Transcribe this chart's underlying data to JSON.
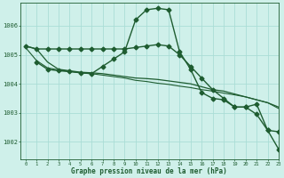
{
  "title": "Graphe pression niveau de la mer (hPa)",
  "background_color": "#cff0ea",
  "grid_color": "#aaddd6",
  "line_color": "#1e5c30",
  "xlim": [
    -0.5,
    23
  ],
  "ylim": [
    1001.4,
    1006.8
  ],
  "yticks": [
    1002,
    1003,
    1004,
    1005,
    1006
  ],
  "xticks": [
    0,
    1,
    2,
    3,
    4,
    5,
    6,
    7,
    8,
    9,
    10,
    11,
    12,
    13,
    14,
    15,
    16,
    17,
    18,
    19,
    20,
    21,
    22,
    23
  ],
  "series": [
    {
      "x": [
        0,
        1,
        2,
        3,
        4,
        5,
        6,
        7,
        8,
        9,
        10,
        11,
        12,
        13,
        14,
        15,
        16,
        17,
        18,
        19,
        20,
        21,
        22,
        23
      ],
      "y": [
        1005.3,
        1005.2,
        1004.75,
        1004.5,
        1004.45,
        1004.4,
        1004.38,
        1004.35,
        1004.3,
        1004.25,
        1004.2,
        1004.18,
        1004.15,
        1004.1,
        1004.05,
        1004.0,
        1003.9,
        1003.8,
        1003.75,
        1003.65,
        1003.55,
        1003.45,
        1003.35,
        1003.2
      ],
      "marker": null,
      "markersize": 0,
      "linewidth": 0.9
    },
    {
      "x": [
        0,
        1,
        2,
        3,
        4,
        5,
        6,
        7,
        8,
        9,
        10,
        11,
        12,
        13,
        14,
        15,
        16,
        17,
        18,
        19,
        20,
        21,
        22,
        23
      ],
      "y": [
        1005.25,
        1004.8,
        1004.55,
        1004.48,
        1004.43,
        1004.38,
        1004.35,
        1004.3,
        1004.25,
        1004.2,
        1004.12,
        1004.08,
        1004.02,
        1003.98,
        1003.92,
        1003.87,
        1003.8,
        1003.75,
        1003.68,
        1003.62,
        1003.55,
        1003.45,
        1003.35,
        1003.15
      ],
      "marker": null,
      "markersize": 0,
      "linewidth": 0.8
    },
    {
      "x": [
        0,
        1,
        2,
        3,
        4,
        5,
        6,
        7,
        8,
        9,
        10,
        11,
        12,
        13,
        14,
        15,
        16,
        17,
        18,
        19,
        20,
        21,
        22,
        23
      ],
      "y": [
        1005.3,
        1005.2,
        1005.2,
        1005.2,
        1005.2,
        1005.2,
        1005.2,
        1005.2,
        1005.2,
        1005.2,
        1005.25,
        1005.3,
        1005.35,
        1005.3,
        1005.0,
        1004.6,
        1004.2,
        1003.8,
        1003.5,
        1003.2,
        1003.2,
        1003.3,
        1002.4,
        1002.35
      ],
      "marker": "D",
      "markersize": 2.5,
      "linewidth": 1.0
    },
    {
      "x": [
        1,
        2,
        3,
        4,
        5,
        6,
        7,
        8,
        9,
        10,
        11,
        12,
        13,
        14,
        15,
        16,
        17,
        18,
        19,
        20,
        21,
        22,
        23
      ],
      "y": [
        1004.75,
        1004.5,
        1004.45,
        1004.42,
        1004.38,
        1004.35,
        1004.6,
        1004.85,
        1005.1,
        1006.2,
        1006.55,
        1006.6,
        1006.55,
        1005.1,
        1004.5,
        1003.7,
        1003.5,
        1003.45,
        1003.2,
        1003.2,
        1002.95,
        1002.4,
        1001.75
      ],
      "marker": "D",
      "markersize": 2.5,
      "linewidth": 1.0
    }
  ]
}
